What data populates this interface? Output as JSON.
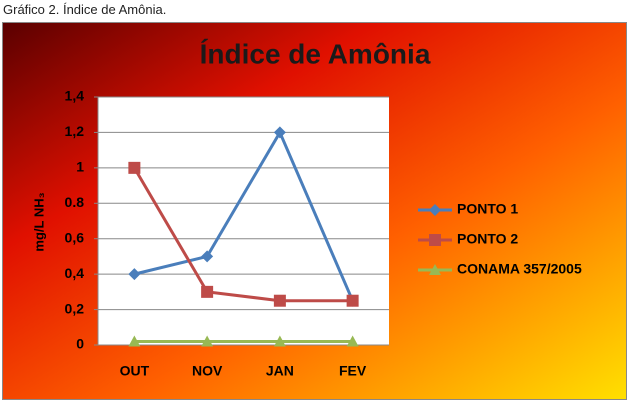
{
  "caption": "Gráfico 2. Índice de Amônia.",
  "chart_data": {
    "type": "line",
    "title": "Índice de Amônia",
    "y_label": "mg/L NH₃",
    "categories": [
      "OUT",
      "NOV",
      "JAN",
      "FEV"
    ],
    "series": [
      {
        "name": "PONTO 1",
        "color": "#4a7ebb",
        "marker": "diamond",
        "values": [
          0.4,
          0.5,
          1.2,
          0.25
        ]
      },
      {
        "name": "PONTO 2",
        "color": "#be4b48",
        "marker": "square",
        "values": [
          1,
          0.3,
          0.25,
          0.25
        ]
      },
      {
        "name": "CONAMA 357/2005",
        "color": "#98b954",
        "marker": "triangle",
        "values": [
          0.02,
          0.02,
          0.02,
          0.02
        ]
      }
    ],
    "ylim": [
      0,
      1.4
    ],
    "yticks": [
      0,
      {
        "value": 0.2,
        "label": "0,2"
      },
      {
        "value": 0.4,
        "label": "0,4"
      },
      {
        "value": 0.6,
        "label": "0,6"
      },
      {
        "value": 0.8,
        "label": "0.8"
      },
      1,
      {
        "value": 1.2,
        "label": "1,2"
      },
      {
        "value": 1.4,
        "label": "1,4"
      }
    ],
    "grid": true,
    "legend": "right"
  }
}
